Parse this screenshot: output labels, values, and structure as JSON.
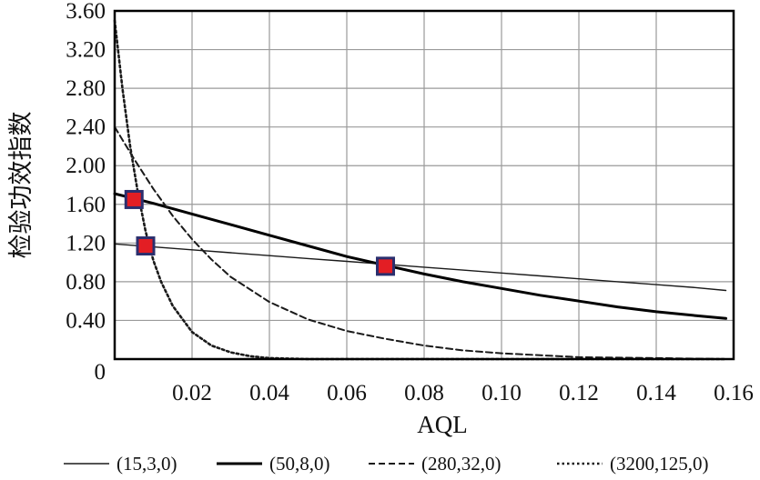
{
  "chart_data": {
    "type": "line",
    "title": "",
    "xlabel": "AQL",
    "ylabel": "检验功效指数",
    "xlim": [
      0,
      0.16
    ],
    "ylim": [
      0,
      3.6
    ],
    "grid": true,
    "legend_position": "bottom",
    "x_ticks": [
      {
        "value": 0.02,
        "label": "0.02"
      },
      {
        "value": 0.04,
        "label": "0.04"
      },
      {
        "value": 0.06,
        "label": "0.06"
      },
      {
        "value": 0.08,
        "label": "0.08"
      },
      {
        "value": 0.1,
        "label": "0.10"
      },
      {
        "value": 0.12,
        "label": "0.12"
      },
      {
        "value": 0.14,
        "label": "0.14"
      },
      {
        "value": 0.16,
        "label": "0.16"
      }
    ],
    "y_ticks": [
      {
        "value": 0,
        "label": "0"
      },
      {
        "value": 0.4,
        "label": "0.40"
      },
      {
        "value": 0.8,
        "label": "0.80"
      },
      {
        "value": 1.2,
        "label": "1.20"
      },
      {
        "value": 1.6,
        "label": "1.60"
      },
      {
        "value": 2.0,
        "label": "2.00"
      },
      {
        "value": 2.4,
        "label": "2.40"
      },
      {
        "value": 2.8,
        "label": "2.80"
      },
      {
        "value": 3.2,
        "label": "3.20"
      },
      {
        "value": 3.6,
        "label": "3.60"
      }
    ],
    "series": [
      {
        "name": "(15,3,0)",
        "style": "thin",
        "color": "#1a1a1a",
        "x": [
          0.0,
          0.01,
          0.02,
          0.03,
          0.04,
          0.05,
          0.06,
          0.07,
          0.08,
          0.09,
          0.1,
          0.11,
          0.12,
          0.13,
          0.14,
          0.15,
          0.158
        ],
        "y": [
          1.19,
          1.16,
          1.13,
          1.1,
          1.07,
          1.04,
          1.01,
          0.98,
          0.95,
          0.92,
          0.89,
          0.86,
          0.83,
          0.8,
          0.77,
          0.74,
          0.71
        ]
      },
      {
        "name": "(50,8,0)",
        "style": "thick",
        "color": "#000000",
        "x": [
          0.0,
          0.01,
          0.02,
          0.03,
          0.04,
          0.05,
          0.06,
          0.07,
          0.08,
          0.09,
          0.1,
          0.11,
          0.12,
          0.13,
          0.14,
          0.15,
          0.158
        ],
        "y": [
          1.71,
          1.61,
          1.5,
          1.39,
          1.28,
          1.17,
          1.06,
          0.97,
          0.88,
          0.8,
          0.73,
          0.66,
          0.6,
          0.54,
          0.49,
          0.45,
          0.42
        ]
      },
      {
        "name": "(280,32,0)",
        "style": "dashed",
        "color": "#1a1a1a",
        "x": [
          0.0,
          0.005,
          0.01,
          0.015,
          0.02,
          0.025,
          0.03,
          0.04,
          0.05,
          0.06,
          0.07,
          0.08,
          0.09,
          0.1,
          0.12,
          0.14,
          0.158
        ],
        "y": [
          2.4,
          2.07,
          1.76,
          1.48,
          1.24,
          1.03,
          0.85,
          0.59,
          0.41,
          0.29,
          0.21,
          0.14,
          0.09,
          0.06,
          0.02,
          0.01,
          0.0
        ]
      },
      {
        "name": "(3200,125,0)",
        "style": "dotted",
        "color": "#1a1a1a",
        "x": [
          0.0,
          0.002,
          0.004,
          0.006,
          0.008,
          0.01,
          0.012,
          0.015,
          0.02,
          0.025,
          0.03,
          0.035,
          0.04,
          0.05,
          0.06,
          0.08,
          0.1,
          0.158
        ],
        "y": [
          3.5,
          2.8,
          2.2,
          1.72,
          1.32,
          1.02,
          0.8,
          0.55,
          0.28,
          0.14,
          0.07,
          0.03,
          0.01,
          0.0,
          0.0,
          0.0,
          0.0,
          0.0
        ]
      }
    ],
    "markers": [
      {
        "x": 0.005,
        "y": 1.65,
        "color": "#e31e24"
      },
      {
        "x": 0.008,
        "y": 1.17,
        "color": "#e31e24"
      },
      {
        "x": 0.07,
        "y": 0.96,
        "color": "#e31e24"
      }
    ]
  }
}
